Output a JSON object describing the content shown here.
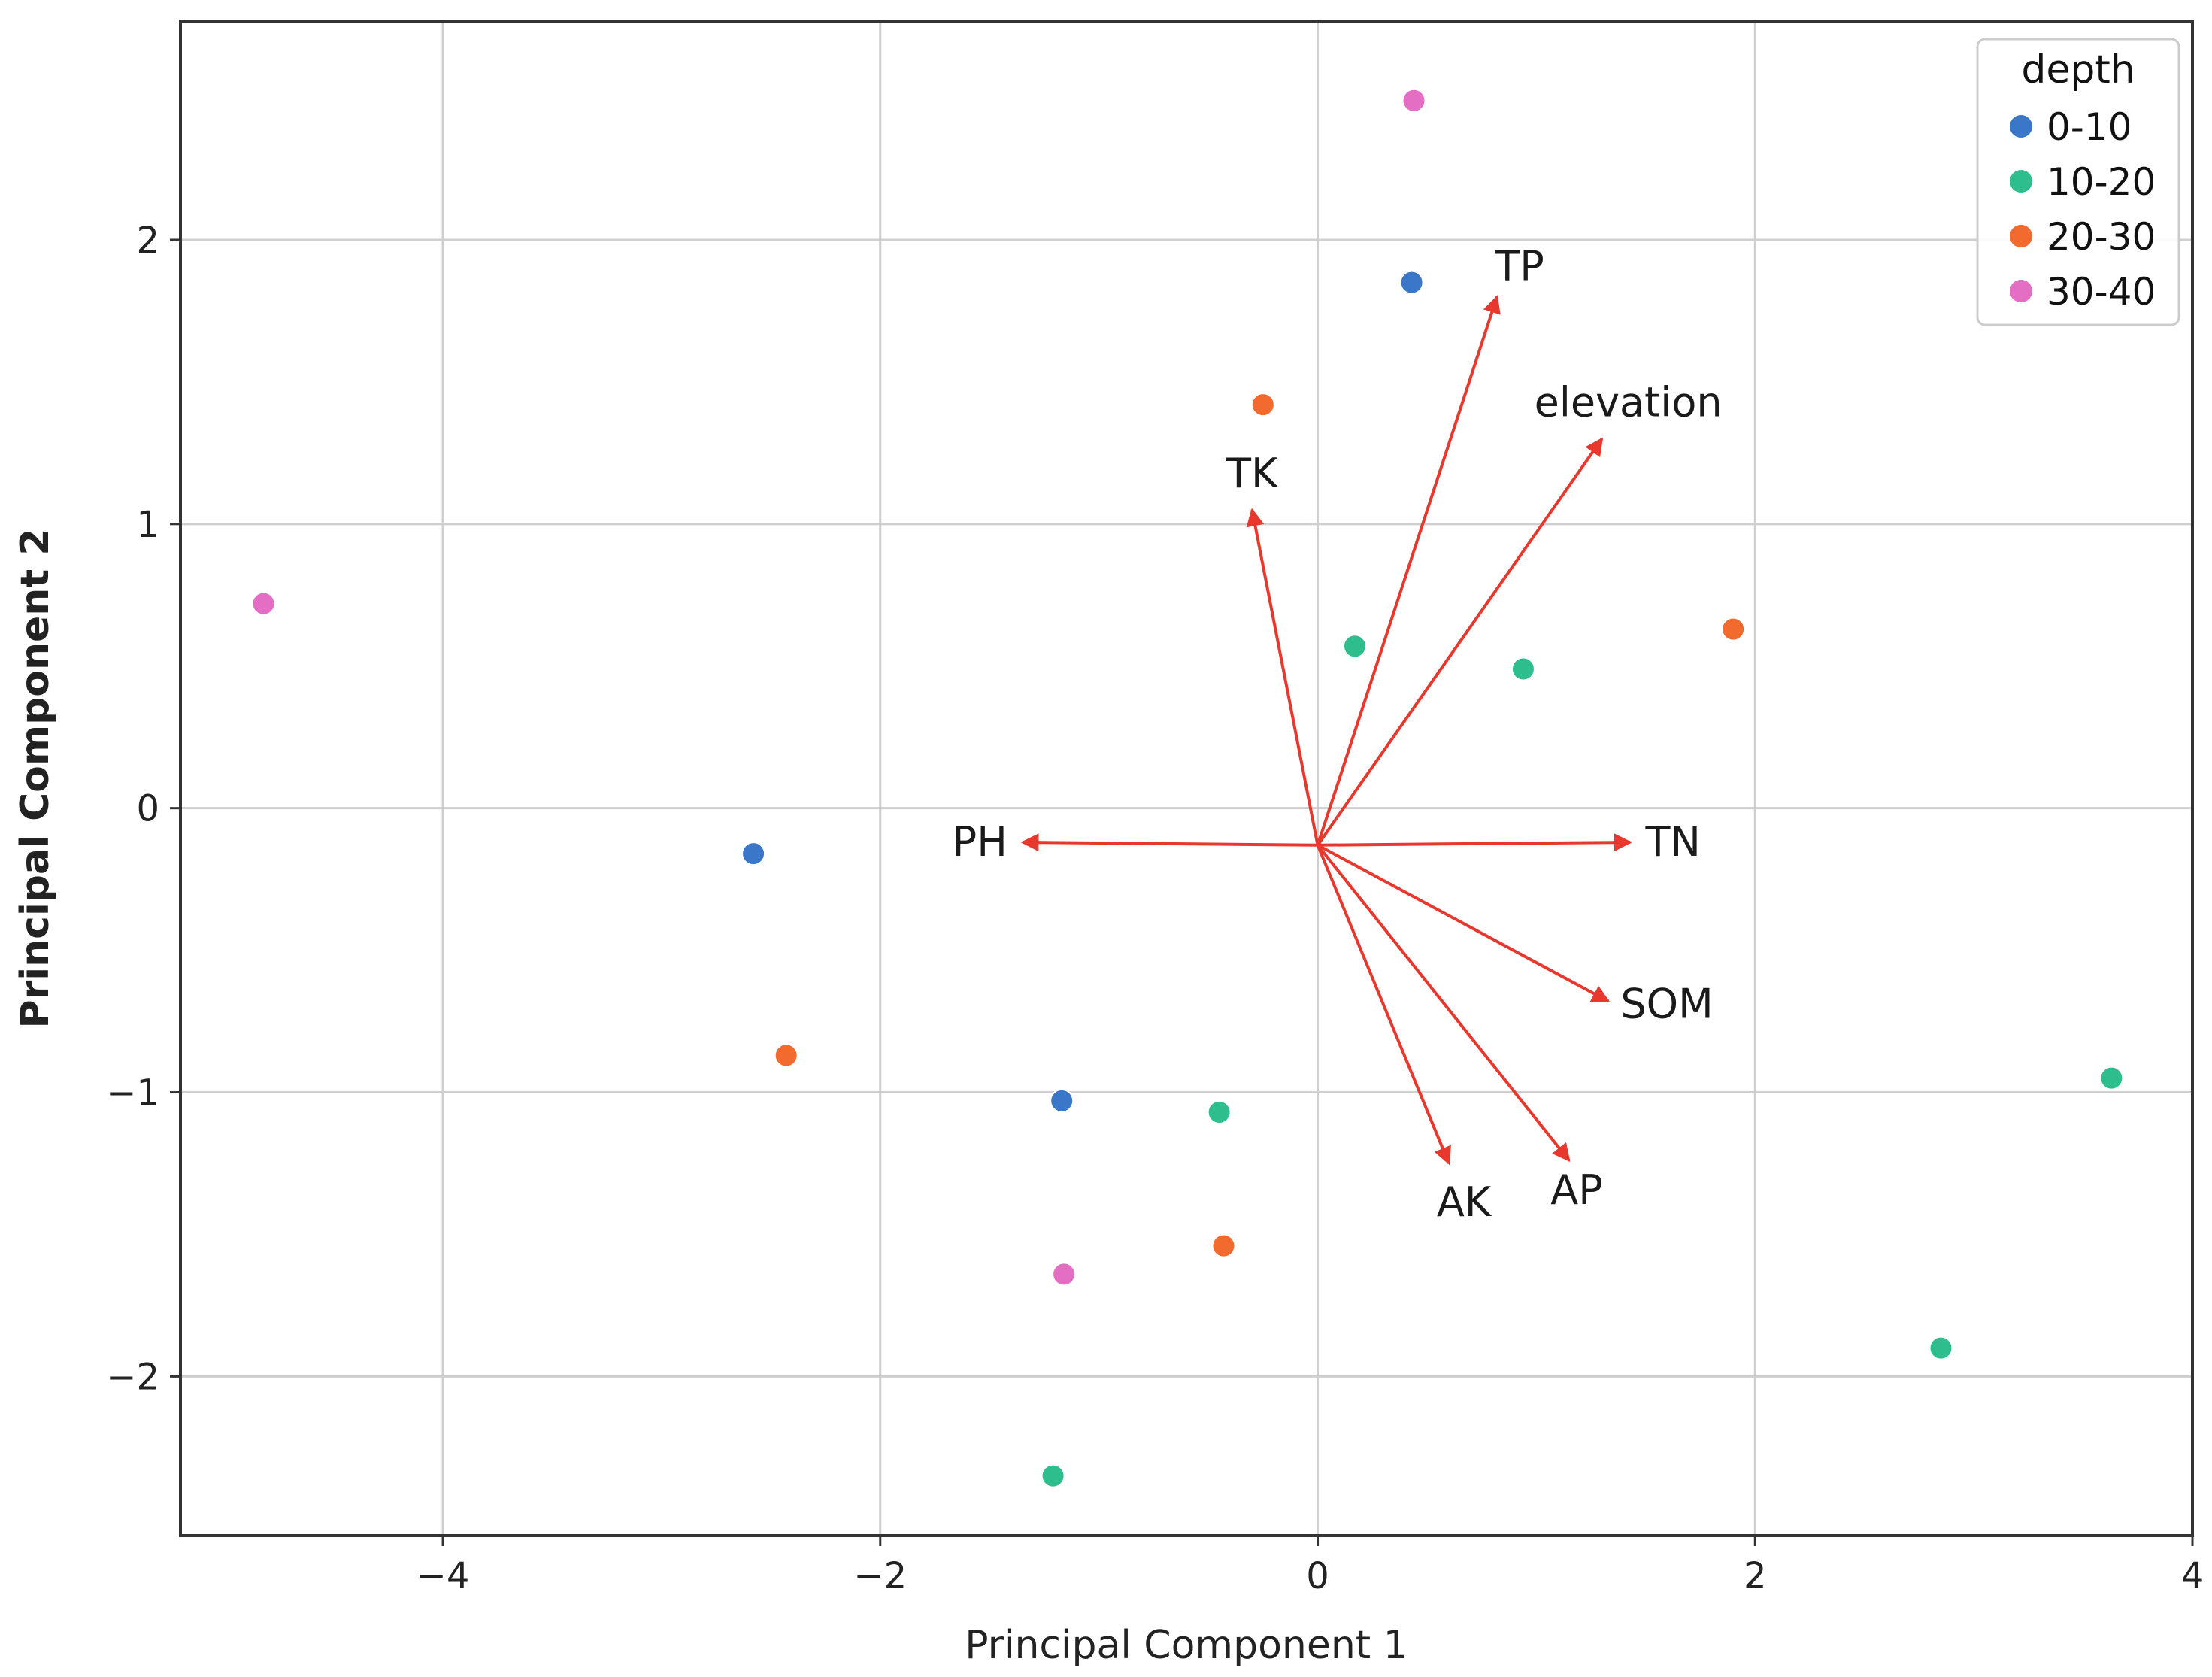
{
  "chart_data": {
    "type": "scatter",
    "xlabel": "Principal Component 1",
    "ylabel": "Principal Component 2",
    "xlim": [
      -5.2,
      4.0
    ],
    "ylim": [
      -2.56,
      2.77
    ],
    "grid": true,
    "xticks": [
      -4,
      -2,
      0,
      2,
      4
    ],
    "yticks": [
      -2,
      -1,
      0,
      1,
      2
    ],
    "xtick_labels": [
      "−4",
      "−2",
      "0",
      "2",
      "4"
    ],
    "ytick_labels": [
      "−2",
      "−1",
      "0",
      "1",
      "2"
    ],
    "legend": {
      "title": "depth",
      "placement": "top-right",
      "entries": [
        "0-10",
        "10-20",
        "20-30",
        "30-40"
      ]
    },
    "series": [
      {
        "name": "0-10",
        "color": "#3a77c9",
        "points": [
          [
            0.43,
            1.85
          ],
          [
            -2.58,
            -0.16
          ],
          [
            -1.17,
            -1.03
          ]
        ]
      },
      {
        "name": "10-20",
        "color": "#2ebd8c",
        "points": [
          [
            0.17,
            0.57
          ],
          [
            0.94,
            0.49
          ],
          [
            3.63,
            -0.95
          ],
          [
            -0.45,
            -1.07
          ],
          [
            -1.21,
            -2.35
          ],
          [
            2.85,
            -1.9
          ]
        ]
      },
      {
        "name": "20-30",
        "color": "#f26a2e",
        "points": [
          [
            -0.25,
            1.42
          ],
          [
            1.9,
            0.63
          ],
          [
            -2.43,
            -0.87
          ],
          [
            -0.43,
            -1.54
          ]
        ]
      },
      {
        "name": "30-40",
        "color": "#e36ec4",
        "points": [
          [
            0.44,
            2.49
          ],
          [
            -4.82,
            0.72
          ],
          [
            -1.16,
            -1.64
          ]
        ]
      }
    ],
    "vectors": {
      "origin": [
        0.0,
        -0.13
      ],
      "color": "#e8382e",
      "items": [
        {
          "label": "TP",
          "x": 0.82,
          "y": 1.8
        },
        {
          "label": "elevation",
          "x": 1.3,
          "y": 1.3
        },
        {
          "label": "TK",
          "x": -0.3,
          "y": 1.05
        },
        {
          "label": "PH",
          "x": -1.35,
          "y": -0.12
        },
        {
          "label": "TN",
          "x": 1.43,
          "y": -0.12
        },
        {
          "label": "SOM",
          "x": 1.33,
          "y": -0.68
        },
        {
          "label": "AK",
          "x": 0.6,
          "y": -1.25
        },
        {
          "label": "AP",
          "x": 1.15,
          "y": -1.24
        }
      ]
    }
  }
}
